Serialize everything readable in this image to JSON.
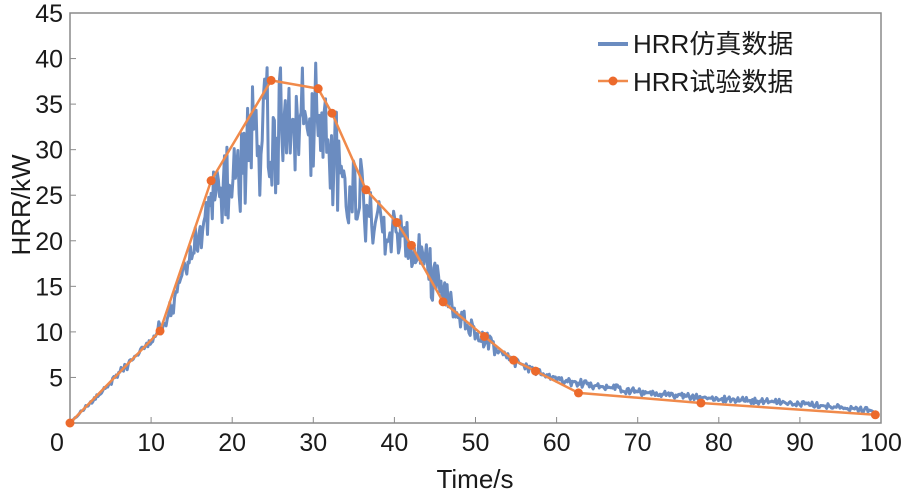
{
  "chart_data": {
    "type": "line",
    "title": "",
    "xlabel": "Time/s",
    "ylabel": "HRR/kW",
    "xlim": [
      0,
      100
    ],
    "ylim": [
      0,
      45
    ],
    "xticks": [
      "0",
      "10",
      "20",
      "30",
      "40",
      "50",
      "60",
      "70",
      "80",
      "90",
      "100"
    ],
    "yticks": [
      "5",
      "10",
      "15",
      "20",
      "25",
      "30",
      "35",
      "40",
      "45"
    ],
    "grid": false,
    "legend_position": "top-right",
    "colors": {
      "sim": "#6b8cc0",
      "exp": "#f08a4b",
      "exp_marker": "#ec6a2c",
      "axis": "#8a8a8a"
    },
    "series": [
      {
        "name": "HRR仿真数据",
        "style": "noisy-line",
        "envelope": {
          "x": [
            0,
            5,
            10,
            12,
            14,
            16,
            18,
            20,
            22,
            24,
            25,
            27,
            30,
            32,
            34,
            36,
            38,
            40,
            42,
            44,
            46,
            48,
            50,
            52,
            55,
            58,
            62,
            70,
            80,
            90,
            99.5
          ],
          "low": [
            0,
            4,
            8.5,
            10,
            15,
            19,
            20.5,
            20.5,
            22,
            24,
            25,
            26,
            26,
            24,
            22,
            20,
            18,
            18,
            17,
            14,
            12,
            10.5,
            9,
            7.5,
            6,
            5,
            4,
            3,
            2.3,
            1.8,
            1
          ],
          "high": [
            0,
            5,
            9.5,
            13,
            18,
            23,
            29,
            33,
            37,
            38,
            42,
            41,
            41,
            37,
            32,
            29,
            27,
            24,
            22,
            20,
            16,
            13,
            11,
            9.5,
            7.5,
            6,
            5,
            3.8,
            3,
            2.5,
            1.6
          ]
        }
      },
      {
        "name": "HRR试验数据",
        "style": "line-marker",
        "x": [
          0,
          11.1,
          17.4,
          24.8,
          30.6,
          32.3,
          36.5,
          40.3,
          42.1,
          46.0,
          51.1,
          54.7,
          57.4,
          62.7,
          77.8,
          99.3
        ],
        "y": [
          0,
          10.1,
          26.6,
          37.6,
          36.7,
          34.0,
          25.6,
          22.0,
          19.5,
          13.3,
          9.5,
          6.9,
          5.7,
          3.3,
          2.2,
          0.9
        ]
      }
    ]
  }
}
